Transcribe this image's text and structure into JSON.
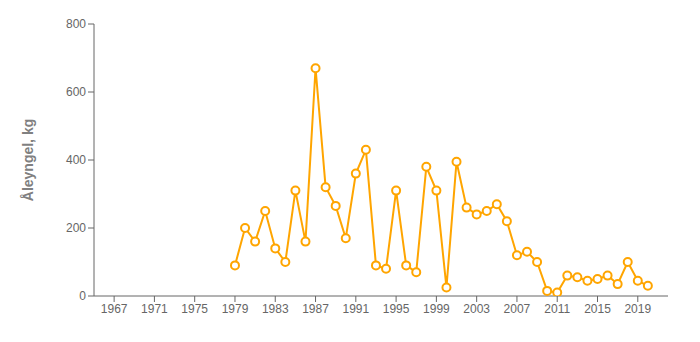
{
  "chart_data": {
    "type": "line",
    "ylabel": "Åleyngel, kg",
    "x": [
      1979,
      1980,
      1981,
      1982,
      1983,
      1984,
      1985,
      1986,
      1987,
      1988,
      1989,
      1990,
      1991,
      1992,
      1993,
      1994,
      1995,
      1996,
      1997,
      1998,
      1999,
      2000,
      2001,
      2002,
      2003,
      2004,
      2005,
      2006,
      2007,
      2008,
      2009,
      2010,
      2011,
      2012,
      2013,
      2014,
      2015,
      2016,
      2017,
      2018,
      2019,
      2020
    ],
    "values": [
      90,
      200,
      160,
      250,
      140,
      100,
      310,
      160,
      670,
      320,
      265,
      170,
      360,
      430,
      90,
      80,
      310,
      90,
      70,
      380,
      310,
      25,
      395,
      260,
      240,
      250,
      270,
      220,
      120,
      130,
      100,
      15,
      10,
      60,
      55,
      45,
      50,
      60,
      35,
      100,
      45,
      30
    ],
    "color": "#FFA500",
    "marker": "circle",
    "xlim": [
      1965,
      2022
    ],
    "xticks": [
      1967,
      1971,
      1975,
      1979,
      1983,
      1987,
      1991,
      1995,
      1999,
      2003,
      2007,
      2011,
      2015,
      2019
    ],
    "ylim": [
      0,
      800
    ],
    "yticks": [
      0,
      200,
      400,
      600,
      800
    ],
    "grid": false
  }
}
